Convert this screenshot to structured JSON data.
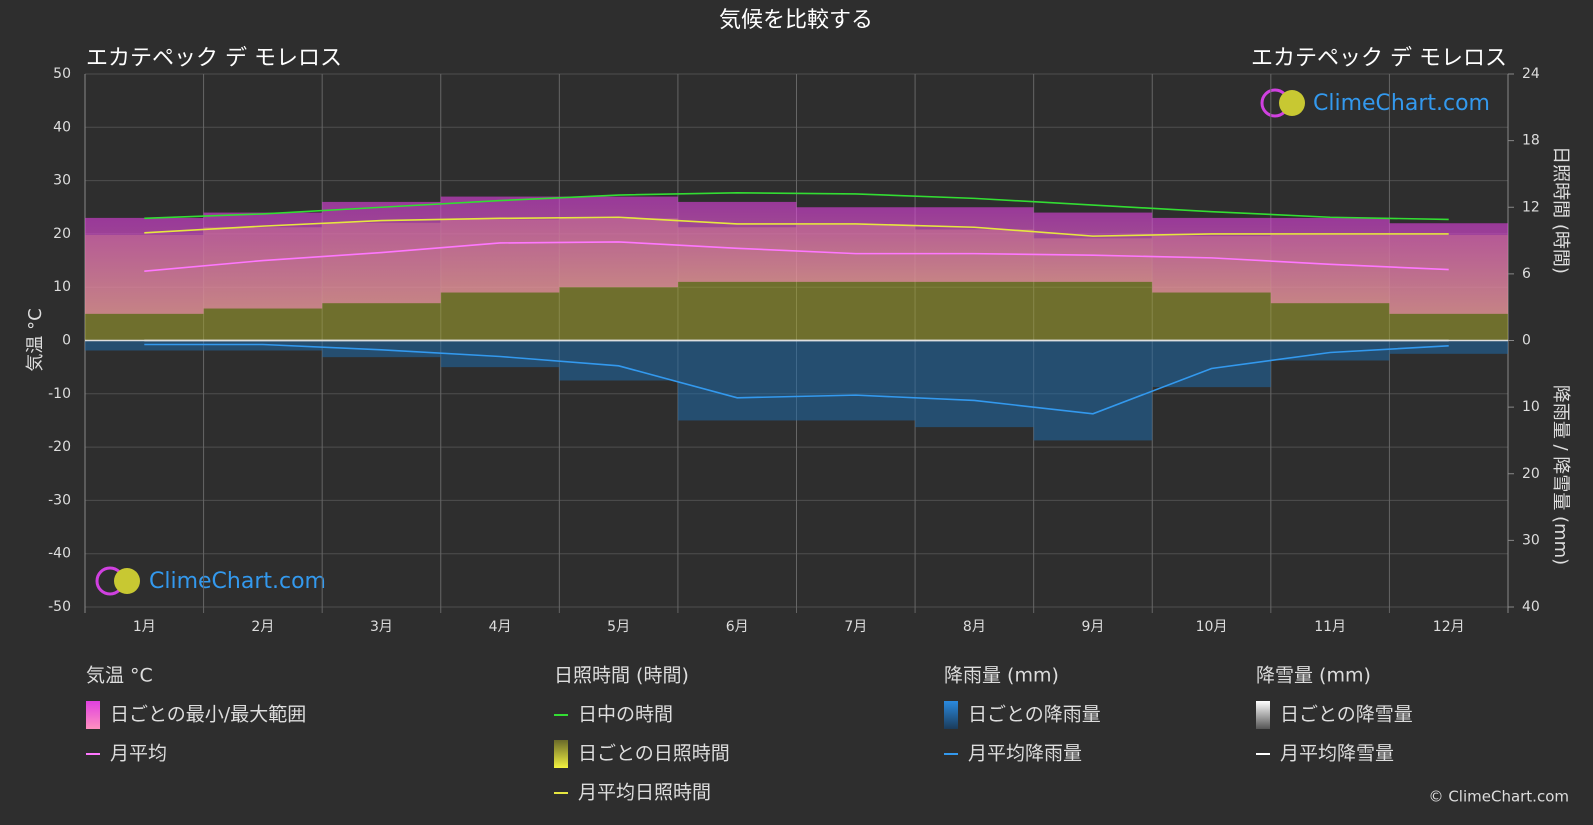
{
  "chart_data": {
    "type": "line",
    "title": "気候を比較する",
    "location_left": "エカテペック デ モレロス",
    "location_right": "エカテペック デ モレロス",
    "ylabel": "気温 °C",
    "y2label": "日照時間 (時間)",
    "y3label": "降雨量 / 降雪量 (mm)",
    "watermark": "ClimeChart.com",
    "copyright": "© ClimeChart.com",
    "categories": [
      "1月",
      "2月",
      "3月",
      "4月",
      "5月",
      "6月",
      "7月",
      "8月",
      "9月",
      "10月",
      "11月",
      "12月"
    ],
    "ylim": [
      -50,
      50
    ],
    "yticks": [
      -50,
      -40,
      -30,
      -20,
      -10,
      0,
      10,
      20,
      30,
      40,
      50
    ],
    "y2lim": [
      0,
      24
    ],
    "y2ticks": [
      0,
      6,
      12,
      18,
      24
    ],
    "y3lim": [
      0,
      40
    ],
    "y3ticks": [
      10,
      20,
      30,
      40
    ],
    "grid": true,
    "legend_titles": [
      "気温 °C",
      "日照時間 (時間)",
      "降雨量 (mm)",
      "降雪量 (mm)"
    ],
    "series": [
      {
        "name": "日ごとの最小/最大範囲",
        "style": "range",
        "color": "#e040e0",
        "values": [
          [
            5,
            23
          ],
          [
            6,
            24
          ],
          [
            7,
            26
          ],
          [
            9,
            27
          ],
          [
            10,
            27
          ],
          [
            11,
            26
          ],
          [
            11,
            25
          ],
          [
            11,
            25
          ],
          [
            11,
            24
          ],
          [
            9,
            23
          ],
          [
            7,
            23
          ],
          [
            5,
            22
          ]
        ]
      },
      {
        "name": "月平均",
        "style": "line",
        "color": "#ff77ff",
        "values": [
          13.0,
          15.0,
          16.5,
          18.3,
          18.5,
          17.3,
          16.3,
          16.3,
          16.0,
          15.5,
          14.3,
          13.3
        ]
      },
      {
        "name": "日中の時間",
        "style": "line",
        "axis": "y2",
        "color": "#33dd33",
        "values": [
          11.0,
          11.4,
          12.0,
          12.6,
          13.1,
          13.3,
          13.2,
          12.8,
          12.2,
          11.6,
          11.1,
          10.9
        ]
      },
      {
        "name": "日ごとの日照時間",
        "style": "bar",
        "axis": "y2",
        "color": "#a6a62e",
        "values": [
          9.5,
          10.2,
          10.6,
          10.9,
          11.0,
          10.2,
          10.4,
          10.0,
          9.2,
          9.4,
          9.5,
          9.5
        ]
      },
      {
        "name": "月平均日照時間",
        "style": "line",
        "axis": "y2",
        "color": "#e6e640",
        "values": [
          9.7,
          10.3,
          10.8,
          11.0,
          11.1,
          10.5,
          10.5,
          10.2,
          9.4,
          9.6,
          9.6,
          9.6
        ]
      },
      {
        "name": "日ごとの降雨量",
        "style": "bar",
        "axis": "y3",
        "color": "#1f6aa8",
        "values": [
          1.5,
          1.5,
          2.5,
          4,
          6,
          12,
          12,
          13,
          15,
          7,
          3,
          2
        ]
      },
      {
        "name": "月平均降雨量",
        "style": "line",
        "axis": "y3",
        "color": "#3399ee",
        "values": [
          0.6,
          0.6,
          1.4,
          2.4,
          3.8,
          8.6,
          8.2,
          9.0,
          11.0,
          4.2,
          1.8,
          0.8
        ]
      },
      {
        "name": "日ごとの降雪量",
        "style": "bar",
        "axis": "y3",
        "color": "#cccccc",
        "values": [
          0,
          0,
          0,
          0,
          0,
          0,
          0,
          0,
          0,
          0,
          0,
          0
        ]
      },
      {
        "name": "月平均降雪量",
        "style": "line",
        "axis": "y3",
        "color": "#ffffff",
        "values": [
          0,
          0,
          0,
          0,
          0,
          0,
          0,
          0,
          0,
          0,
          0,
          0
        ]
      }
    ]
  }
}
